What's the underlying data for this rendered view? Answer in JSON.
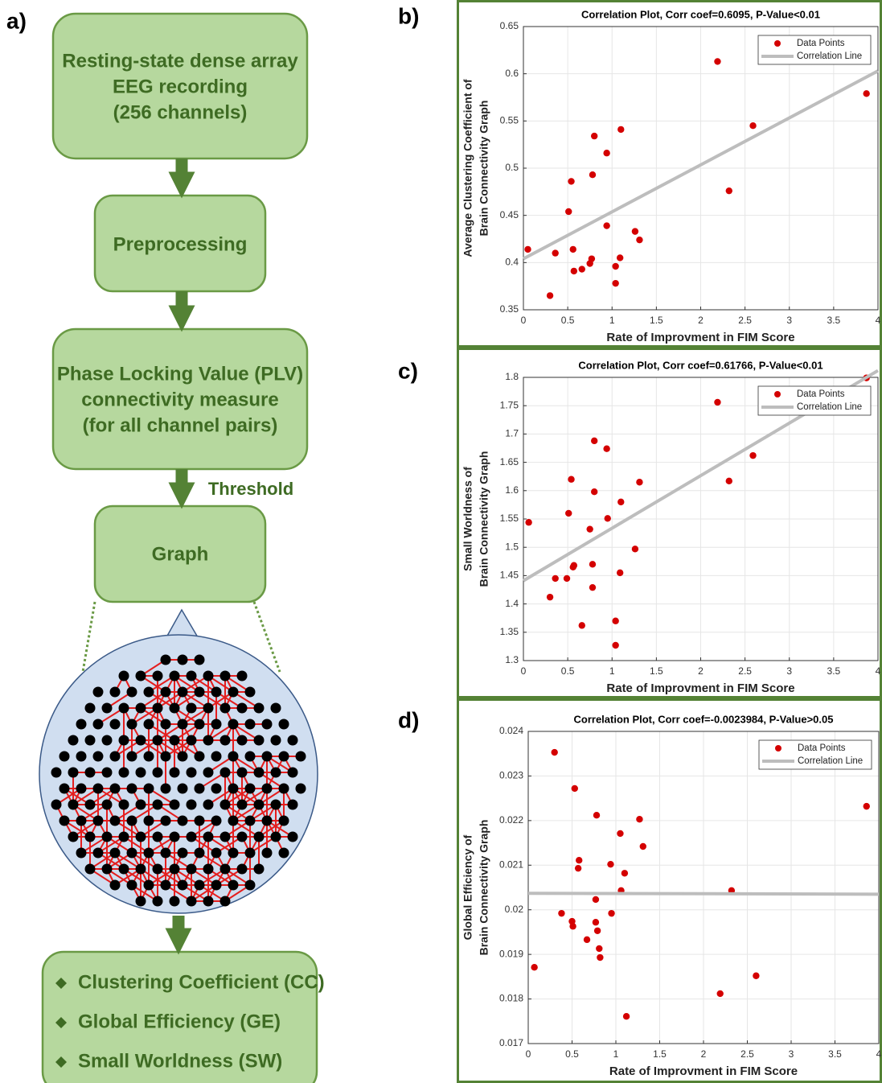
{
  "panel_labels": [
    "a)",
    "b)",
    "c)",
    "d)"
  ],
  "flowchart": {
    "nodes": [
      {
        "lines": [
          "Resting-state dense array",
          "EEG recording",
          "(256 channels)"
        ]
      },
      {
        "lines": [
          "Preprocessing"
        ]
      },
      {
        "lines": [
          "Phase Locking Value (PLV)",
          "connectivity measure",
          "(for all channel pairs)"
        ]
      },
      {
        "lines": [
          "Graph"
        ]
      },
      {
        "lines": [
          "Clustering Coefficient (CC)",
          "Global Efficiency (GE)",
          "Small Worldness (SW)"
        ]
      }
    ],
    "edge_label": "Threshold"
  },
  "chart_data": [
    {
      "type": "scatter",
      "title": "Correlation Plot, Corr coef=0.6095, P-Value<0.01",
      "xlabel": "Rate of Improvment in FIM Score",
      "ylabel": [
        "Average Clustering Coefficient of",
        "Brain Connectivity Graph"
      ],
      "xlim": [
        0,
        4
      ],
      "xticks": [
        0,
        0.5,
        1,
        1.5,
        2,
        2.5,
        3,
        3.5,
        4
      ],
      "ylim": [
        0.35,
        0.65
      ],
      "yticks": [
        0.35,
        0.4,
        0.45,
        0.5,
        0.55,
        0.6,
        0.65
      ],
      "grid": true,
      "legend": "upper right",
      "series": [
        {
          "name": "Data Points",
          "color": "#d40000",
          "kind": "points",
          "x": [
            0.05,
            0.36,
            0.3,
            0.51,
            0.54,
            0.56,
            0.57,
            0.66,
            0.75,
            0.77,
            0.78,
            0.8,
            0.94,
            0.94,
            1.04,
            1.04,
            1.09,
            1.1,
            1.26,
            1.31,
            2.19,
            2.32,
            2.59,
            3.87
          ],
          "values": [
            0.414,
            0.41,
            0.365,
            0.454,
            0.486,
            0.414,
            0.391,
            0.393,
            0.399,
            0.404,
            0.493,
            0.534,
            0.516,
            0.439,
            0.396,
            0.378,
            0.405,
            0.541,
            0.433,
            0.424,
            0.613,
            0.476,
            0.545,
            0.579
          ]
        },
        {
          "name": "Correlation Line",
          "color": "#bdbdbd",
          "kind": "line",
          "x": [
            0,
            4
          ],
          "values": [
            0.404,
            0.603
          ]
        }
      ]
    },
    {
      "type": "scatter",
      "title": "Correlation Plot, Corr coef=0.61766, P-Value<0.01",
      "xlabel": "Rate of Improvment in FIM Score",
      "ylabel": [
        "Small Worldness of",
        "Brain Connectivity Graph"
      ],
      "xlim": [
        0,
        4
      ],
      "xticks": [
        0,
        0.5,
        1,
        1.5,
        2,
        2.5,
        3,
        3.5,
        4
      ],
      "ylim": [
        1.3,
        1.8
      ],
      "yticks": [
        1.3,
        1.35,
        1.4,
        1.45,
        1.5,
        1.55,
        1.6,
        1.65,
        1.7,
        1.75,
        1.8
      ],
      "grid": true,
      "legend": "upper right",
      "series": [
        {
          "name": "Data Points",
          "color": "#d40000",
          "kind": "points",
          "x": [
            0.06,
            0.3,
            0.36,
            0.49,
            0.51,
            0.54,
            0.56,
            0.57,
            0.66,
            0.75,
            0.78,
            0.78,
            0.8,
            0.8,
            0.94,
            0.95,
            1.04,
            1.04,
            1.09,
            1.1,
            1.26,
            1.31,
            2.19,
            2.32,
            2.59,
            3.87
          ],
          "values": [
            1.544,
            1.412,
            1.445,
            1.445,
            1.56,
            1.62,
            1.465,
            1.468,
            1.362,
            1.532,
            1.47,
            1.429,
            1.688,
            1.598,
            1.674,
            1.551,
            1.37,
            1.327,
            1.455,
            1.58,
            1.497,
            1.615,
            1.756,
            1.617,
            1.662,
            1.799
          ]
        },
        {
          "name": "Correlation Line",
          "color": "#bdbdbd",
          "kind": "line",
          "x": [
            0,
            4
          ],
          "values": [
            1.441,
            1.812
          ]
        }
      ]
    },
    {
      "type": "scatter",
      "title": "Correlation Plot, Corr coef=-0.0023984, P-Value>0.05",
      "xlabel": "Rate of Improvment in FIM Score",
      "ylabel": [
        "Global Efficiency of",
        "Brain Connectivity Graph"
      ],
      "xlim": [
        0,
        4
      ],
      "xticks": [
        0,
        0.5,
        1,
        1.5,
        2,
        2.5,
        3,
        3.5,
        4
      ],
      "ylim": [
        0.017,
        0.024
      ],
      "yticks": [
        0.017,
        0.018,
        0.019,
        0.02,
        0.021,
        0.022,
        0.023,
        0.024
      ],
      "grid": true,
      "legend": "upper right",
      "series": [
        {
          "name": "Data Points",
          "color": "#d40000",
          "kind": "points",
          "x": [
            0.07,
            0.3,
            0.38,
            0.5,
            0.51,
            0.53,
            0.58,
            0.57,
            0.67,
            0.77,
            0.77,
            0.78,
            0.79,
            0.81,
            0.82,
            0.94,
            0.95,
            1.05,
            1.06,
            1.1,
            1.12,
            1.27,
            1.31,
            2.19,
            2.32,
            2.6,
            3.86
          ],
          "values": [
            0.01871,
            0.02353,
            0.01992,
            0.01974,
            0.01963,
            0.02272,
            0.02111,
            0.02093,
            0.01933,
            0.01972,
            0.02023,
            0.02212,
            0.01953,
            0.01913,
            0.01893,
            0.02102,
            0.01992,
            0.02171,
            0.02043,
            0.02082,
            0.01761,
            0.02203,
            0.02142,
            0.01812,
            0.02043,
            0.01852,
            0.02232
          ]
        },
        {
          "name": "Correlation Line",
          "color": "#bdbdbd",
          "kind": "line",
          "x": [
            0,
            4
          ],
          "values": [
            0.02037,
            0.02035
          ]
        }
      ]
    }
  ]
}
